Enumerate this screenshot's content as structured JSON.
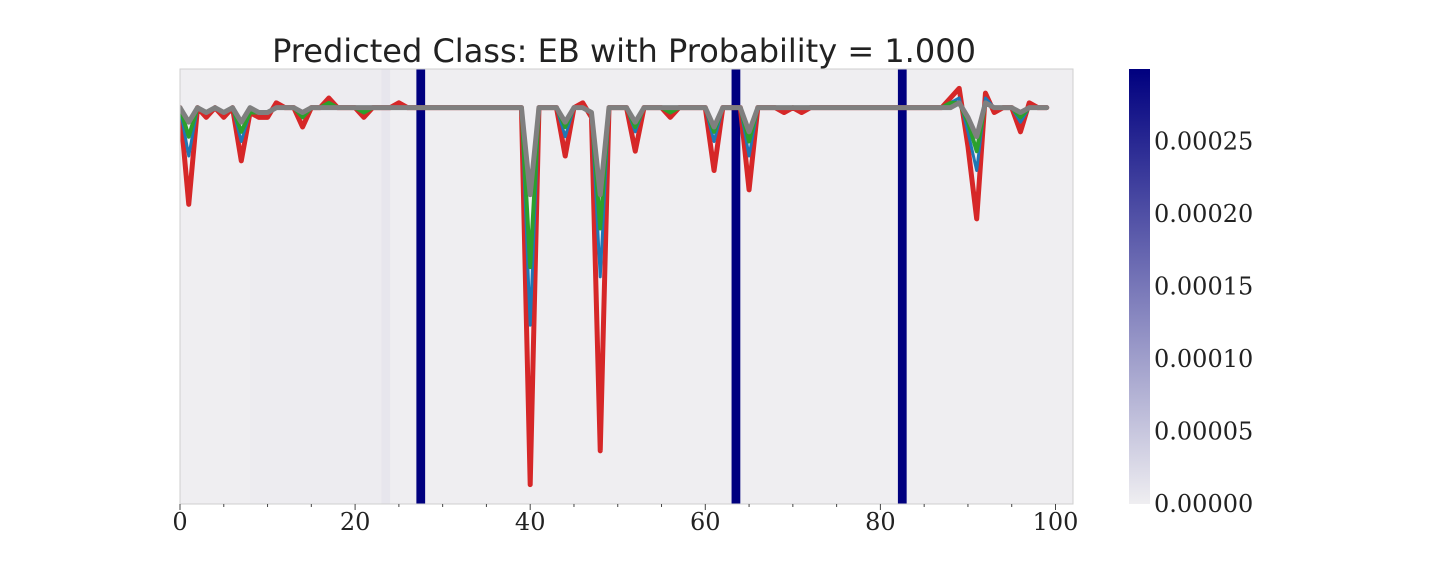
{
  "chart_data": {
    "type": "line",
    "title": "Predicted Class: EB with Probability = 1.000",
    "xlabel": "",
    "ylabel": "",
    "xlim": [
      0,
      102
    ],
    "ylim": [
      -0.82,
      0.08
    ],
    "x_ticks": [
      0,
      20,
      40,
      60,
      80,
      100
    ],
    "x_tick_labels": [
      "0",
      "20",
      "40",
      "60",
      "80",
      "100"
    ],
    "y_ticks_visible": false,
    "grid": false,
    "background_color": "#efeef1",
    "highlight_color": "#00007f",
    "attribution_bars": [
      {
        "start": 27,
        "end": 28,
        "value": 0.0003
      },
      {
        "start": 63,
        "end": 64,
        "value": 0.0003
      },
      {
        "start": 82,
        "end": 83,
        "value": 0.0003
      },
      {
        "start": 23,
        "end": 24,
        "value": 1e-05
      },
      {
        "start": 8,
        "end": 24,
        "value": 3e-06
      }
    ],
    "colorbar": {
      "min": 0.0,
      "max": 0.0003,
      "ticks": [
        0.0,
        5e-05,
        0.0001,
        0.00015,
        0.0002,
        0.00025
      ],
      "tick_labels": [
        "0.00000",
        "0.00005",
        "0.00010",
        "0.00015",
        "0.00020",
        "0.00025"
      ],
      "color_low": "#efeef1",
      "color_high": "#00007f"
    },
    "series": [
      {
        "color": "#d62728",
        "width": 5,
        "values": [
          0.0,
          -0.2,
          0.0,
          -0.02,
          0.0,
          -0.02,
          0.0,
          -0.11,
          -0.01,
          -0.02,
          -0.02,
          0.01,
          0.0,
          0.0,
          -0.04,
          0.0,
          0.0,
          0.02,
          0.0,
          0.0,
          0.0,
          -0.02,
          0.0,
          0.0,
          0.0,
          0.01,
          0.0,
          0.0,
          0.0,
          0.0,
          0.0,
          0.0,
          0.0,
          0.0,
          0.0,
          0.0,
          0.0,
          0.0,
          0.0,
          0.0,
          -0.78,
          0.0,
          0.0,
          0.0,
          -0.1,
          0.0,
          0.01,
          -0.02,
          -0.71,
          0.0,
          0.0,
          0.0,
          -0.09,
          0.0,
          0.0,
          0.0,
          -0.02,
          0.0,
          0.0,
          0.0,
          0.0,
          -0.13,
          0.0,
          0.0,
          0.0,
          -0.17,
          0.0,
          0.0,
          0.0,
          -0.01,
          0.0,
          -0.01,
          0.0,
          0.0,
          0.0,
          0.0,
          0.0,
          0.0,
          0.0,
          0.0,
          0.0,
          0.0,
          0.0,
          0.0,
          0.0,
          0.0,
          0.0,
          0.0,
          0.02,
          0.04,
          -0.08,
          -0.23,
          0.03,
          -0.01,
          0.0,
          0.0,
          -0.05,
          0.01,
          0.0,
          0.0
        ]
      },
      {
        "color": "#1f77b4",
        "width": 3,
        "values": [
          0.0,
          -0.1,
          0.0,
          -0.01,
          0.0,
          -0.01,
          0.0,
          -0.07,
          -0.01,
          -0.01,
          -0.01,
          0.0,
          0.0,
          0.0,
          -0.02,
          0.0,
          0.0,
          0.01,
          0.0,
          0.0,
          0.0,
          -0.01,
          0.0,
          0.0,
          0.0,
          0.0,
          0.0,
          0.0,
          0.0,
          0.0,
          0.0,
          0.0,
          0.0,
          0.0,
          0.0,
          0.0,
          0.0,
          0.0,
          0.0,
          0.0,
          -0.45,
          0.0,
          0.0,
          0.0,
          -0.06,
          0.0,
          0.0,
          -0.01,
          -0.35,
          0.0,
          0.0,
          0.0,
          -0.05,
          0.0,
          0.0,
          0.0,
          -0.01,
          0.0,
          0.0,
          0.0,
          0.0,
          -0.07,
          0.0,
          0.0,
          0.0,
          -0.1,
          0.0,
          0.0,
          0.0,
          0.0,
          0.0,
          0.0,
          0.0,
          0.0,
          0.0,
          0.0,
          0.0,
          0.0,
          0.0,
          0.0,
          0.0,
          0.0,
          0.0,
          0.0,
          0.0,
          0.0,
          0.0,
          0.0,
          0.01,
          0.02,
          -0.05,
          -0.13,
          0.02,
          0.0,
          0.0,
          0.0,
          -0.03,
          0.0,
          0.0,
          0.0
        ]
      },
      {
        "color": "#2ca02c",
        "width": 4,
        "values": [
          0.0,
          -0.06,
          0.0,
          -0.01,
          0.0,
          -0.01,
          0.0,
          -0.05,
          -0.01,
          -0.01,
          -0.01,
          0.0,
          0.0,
          0.0,
          -0.02,
          0.0,
          0.0,
          0.01,
          0.0,
          0.0,
          0.0,
          -0.01,
          0.0,
          0.0,
          0.0,
          0.0,
          0.0,
          0.0,
          0.0,
          0.0,
          0.0,
          0.0,
          0.0,
          0.0,
          0.0,
          0.0,
          0.0,
          0.0,
          0.0,
          0.0,
          -0.33,
          0.0,
          0.0,
          0.0,
          -0.04,
          0.0,
          0.0,
          -0.01,
          -0.25,
          0.0,
          0.0,
          0.0,
          -0.04,
          0.0,
          0.0,
          0.0,
          -0.01,
          0.0,
          0.0,
          0.0,
          0.0,
          -0.05,
          0.0,
          0.0,
          0.0,
          -0.07,
          0.0,
          0.0,
          0.0,
          0.0,
          0.0,
          0.0,
          0.0,
          0.0,
          0.0,
          0.0,
          0.0,
          0.0,
          0.0,
          0.0,
          0.0,
          0.0,
          0.0,
          0.0,
          0.0,
          0.0,
          0.0,
          0.0,
          0.01,
          0.01,
          -0.03,
          -0.09,
          0.01,
          0.0,
          0.0,
          0.0,
          -0.02,
          0.0,
          0.0,
          0.0
        ]
      },
      {
        "color": "#7f7f7f",
        "width": 5,
        "values": [
          0.0,
          -0.03,
          0.0,
          -0.01,
          0.0,
          -0.01,
          0.0,
          -0.03,
          0.0,
          -0.01,
          -0.01,
          0.0,
          0.0,
          0.0,
          -0.01,
          0.0,
          0.0,
          0.0,
          0.0,
          0.0,
          0.0,
          0.0,
          0.0,
          0.0,
          0.0,
          0.0,
          0.0,
          0.0,
          0.0,
          0.0,
          0.0,
          0.0,
          0.0,
          0.0,
          0.0,
          0.0,
          0.0,
          0.0,
          0.0,
          0.0,
          -0.18,
          0.0,
          0.0,
          0.0,
          -0.03,
          0.0,
          0.0,
          -0.01,
          -0.18,
          0.0,
          0.0,
          0.0,
          -0.03,
          0.0,
          0.0,
          0.0,
          0.0,
          0.0,
          0.0,
          0.0,
          0.0,
          -0.04,
          0.0,
          0.0,
          0.0,
          -0.05,
          0.0,
          0.0,
          0.0,
          0.0,
          0.0,
          0.0,
          0.0,
          0.0,
          0.0,
          0.0,
          0.0,
          0.0,
          0.0,
          0.0,
          0.0,
          0.0,
          0.0,
          0.0,
          0.0,
          0.0,
          0.0,
          0.0,
          0.0,
          0.01,
          -0.02,
          -0.06,
          0.01,
          0.0,
          0.0,
          0.0,
          -0.01,
          0.0,
          0.0,
          0.0
        ]
      }
    ]
  }
}
